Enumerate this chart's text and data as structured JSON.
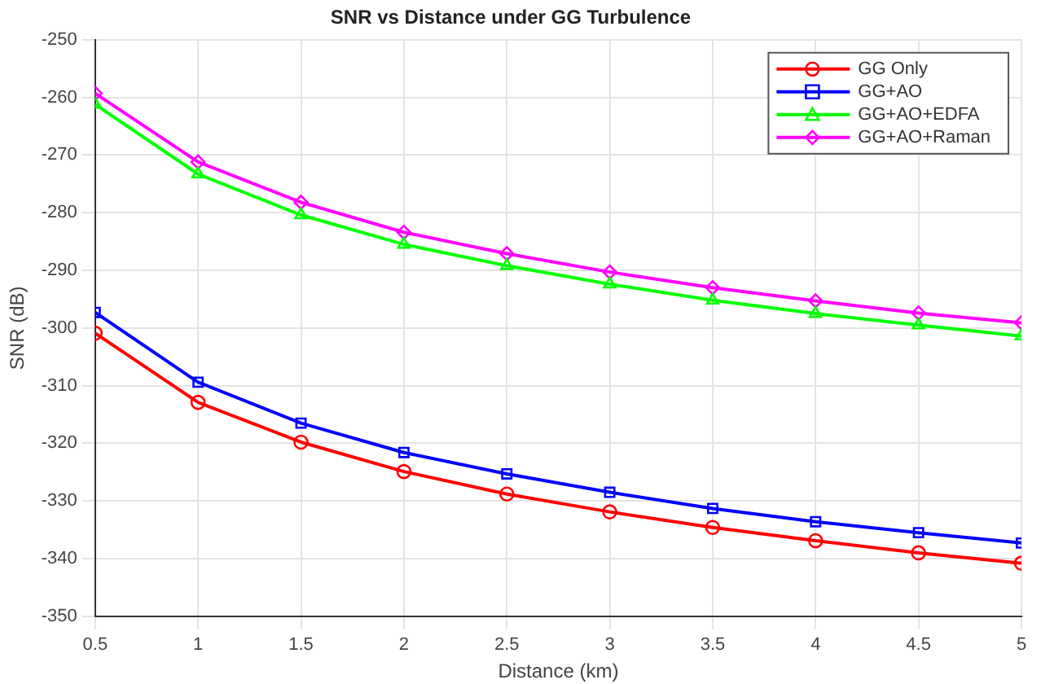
{
  "chart_data": {
    "type": "line",
    "title": "SNR vs Distance under GG Turbulence",
    "xlabel": "Distance (km)",
    "ylabel": "SNR (dB)",
    "x": [
      0.5,
      1,
      1.5,
      2,
      2.5,
      3,
      3.5,
      4,
      4.5,
      5
    ],
    "series": [
      {
        "name": "GG Only",
        "color": "#ff0000",
        "marker": "circle",
        "values": [
          -300.9,
          -312.9,
          -319.8,
          -324.9,
          -328.8,
          -331.9,
          -334.6,
          -336.9,
          -339,
          -340.8
        ]
      },
      {
        "name": "GG+AO",
        "color": "#0000ff",
        "marker": "square",
        "values": [
          -297.3,
          -309.4,
          -316.5,
          -321.6,
          -325.3,
          -328.5,
          -331.3,
          -333.6,
          -335.5,
          -337.3
        ]
      },
      {
        "name": "GG+AO+EDFA",
        "color": "#00ff00",
        "marker": "triangle",
        "values": [
          -261.2,
          -273.3,
          -280.4,
          -285.5,
          -289.2,
          -292.4,
          -295.2,
          -297.5,
          -299.5,
          -301.4
        ]
      },
      {
        "name": "GG+AO+Raman",
        "color": "#ff00ff",
        "marker": "diamond",
        "values": [
          -259.3,
          -271.2,
          -278.2,
          -283.4,
          -287.1,
          -290.3,
          -293,
          -295.3,
          -297.4,
          -299.1
        ]
      }
    ],
    "xlim": [
      0.5,
      5
    ],
    "xticks": [
      0.5,
      1,
      1.5,
      2,
      2.5,
      3,
      3.5,
      4,
      4.5,
      5
    ],
    "ylim": [
      -350,
      -250
    ],
    "yticks": [
      -350,
      -340,
      -330,
      -320,
      -310,
      -300,
      -290,
      -280,
      -270,
      -260,
      -250
    ],
    "grid": true,
    "legend": "top right",
    "line_style": "solid"
  }
}
